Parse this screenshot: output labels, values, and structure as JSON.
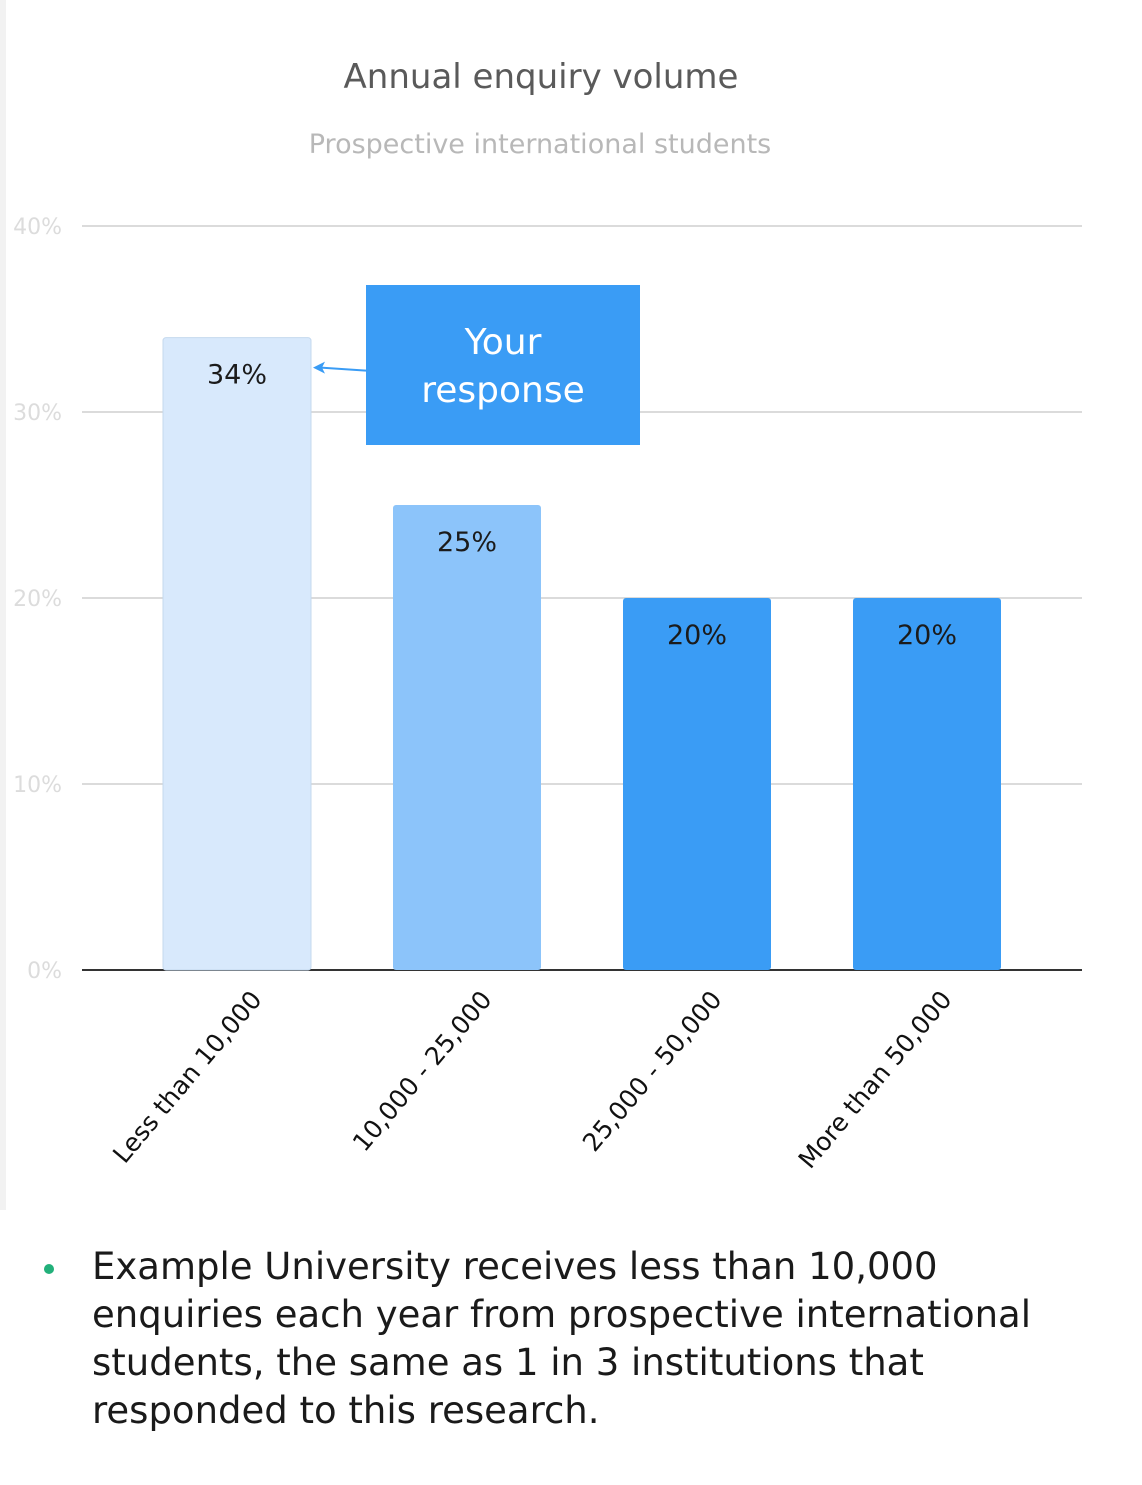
{
  "chart_data": {
    "type": "bar",
    "title": "Annual enquiry volume",
    "subtitle": "Prospective international students",
    "categories": [
      "Less than 10,000",
      "10,000 - 25,000",
      "25,000 - 50,000",
      "More than 50,000"
    ],
    "values": [
      34,
      25,
      20,
      20
    ],
    "data_labels": [
      "34%",
      "25%",
      "20%",
      "20%"
    ],
    "ylim": [
      0,
      40
    ],
    "yticks": [
      0,
      10,
      20,
      30,
      40
    ],
    "ytick_labels": [
      "0%",
      "10%",
      "20%",
      "30%",
      "40%"
    ],
    "grid": true,
    "bar_colors": [
      "#d8e9fc",
      "#8cc4fa",
      "#3a9cf5",
      "#3a9cf5"
    ],
    "xlabel": "",
    "ylabel": "",
    "annotation": {
      "lines": [
        "Your",
        "response"
      ],
      "target_category": "Less than 10,000",
      "color": "#3a9cf5"
    }
  },
  "summary": {
    "text": "Example University receives less than 10,000 enquiries each year from prospective international students, the same as 1 in 3 institutions that responded to this research.",
    "bullet_color": "#22b07a"
  }
}
